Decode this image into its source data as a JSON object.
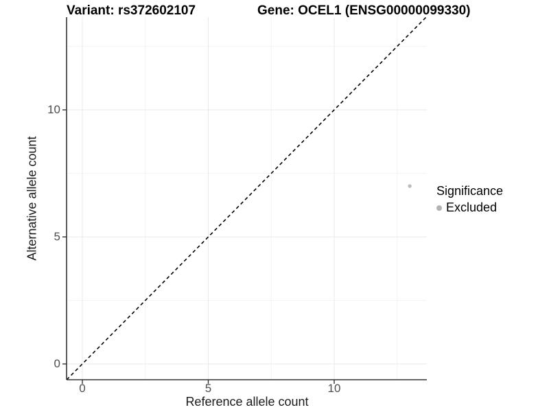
{
  "header": {
    "title_left": "Variant: rs372602107",
    "title_right": "Gene: OCEL1 (ENSG00000099330)"
  },
  "chart_data": {
    "type": "scatter",
    "title": "Variant: rs372602107    Gene: OCEL1 (ENSG00000099330)",
    "xlabel": "Reference allele count",
    "ylabel": "Alternative allele count",
    "x_ticks": [
      0,
      5,
      10
    ],
    "y_ticks": [
      0,
      5,
      10
    ],
    "x_minor_ticks": [
      2.5,
      7.5,
      12.5
    ],
    "y_minor_ticks": [
      2.5,
      7.5,
      12.5
    ],
    "xlim": [
      -0.63,
      13.68
    ],
    "ylim": [
      -0.62,
      13.65
    ],
    "grid": "major+minor",
    "legend_position": "right",
    "series": [
      {
        "name": "Excluded",
        "color": "#bcbcbc",
        "points": [
          {
            "x": 13,
            "y": 7
          }
        ]
      }
    ],
    "reference_line": {
      "kind": "identity y=x",
      "style": "dashed",
      "color": "#000000"
    }
  },
  "legend": {
    "title": "Significance",
    "items": [
      {
        "label": "Excluded",
        "color": "#b2b2b2"
      }
    ]
  },
  "colors": {
    "grid_major": "#e8e8e8",
    "grid_minor": "#f3f3f3",
    "axis_line": "#333333",
    "tick_mark": "#333333",
    "tick_text": "#4d4d4d",
    "point": "#bcbcbc",
    "dashed_line": "#000000"
  }
}
